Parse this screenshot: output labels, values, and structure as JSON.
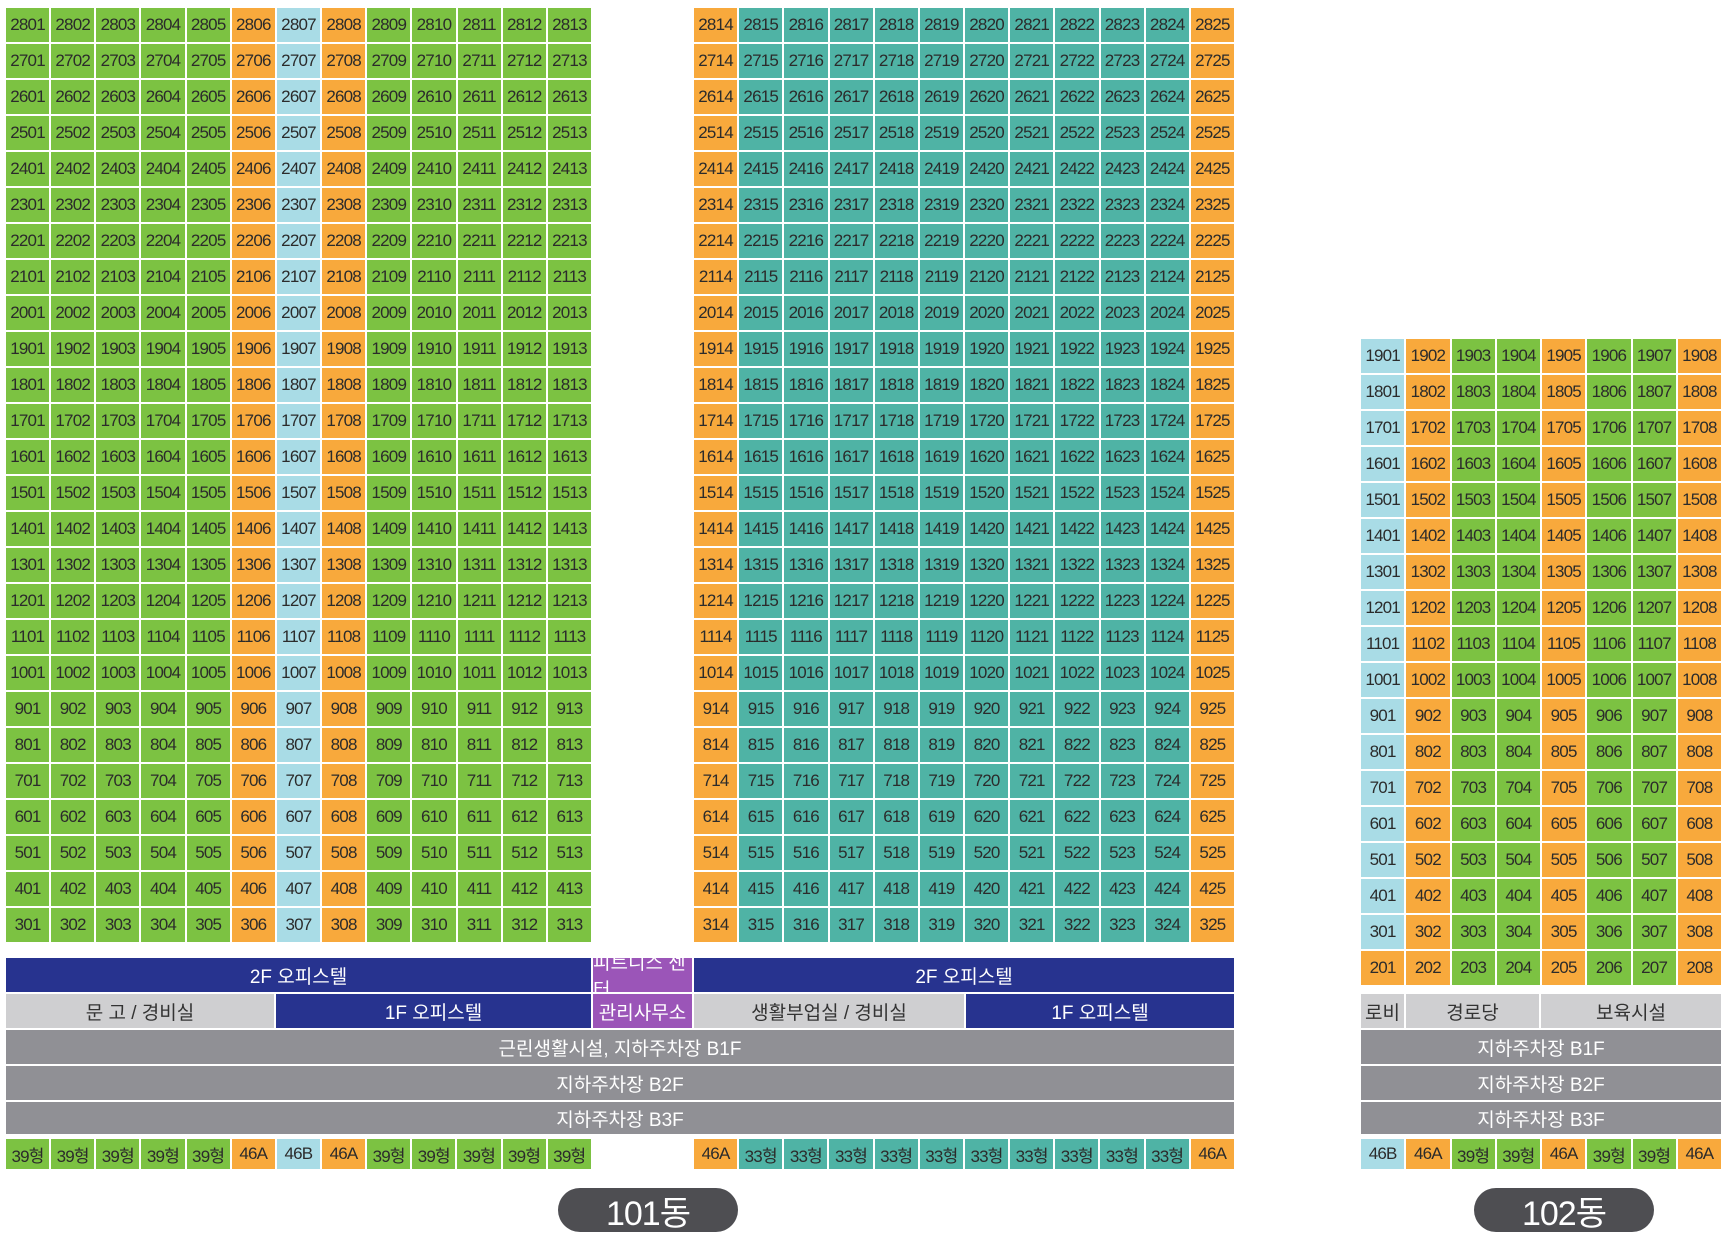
{
  "colors": {
    "g": "#7cc242",
    "o": "#f8a93c",
    "lb": "#a9dce6",
    "t": "#4fb3a5"
  },
  "building101": {
    "label": "101동",
    "left_wing": {
      "units": [
        "01",
        "02",
        "03",
        "04",
        "05",
        "06",
        "07",
        "08",
        "09",
        "10",
        "11",
        "12",
        "13"
      ],
      "col_colors": [
        "g",
        "g",
        "g",
        "g",
        "g",
        "o",
        "lb",
        "o",
        "g",
        "g",
        "g",
        "g",
        "g"
      ],
      "floors": [
        28,
        27,
        26,
        25,
        24,
        23,
        22,
        21,
        20,
        19,
        18,
        17,
        16,
        15,
        14,
        13,
        12,
        11,
        10,
        9,
        8,
        7,
        6,
        5,
        4,
        3
      ],
      "types": [
        "39형",
        "39형",
        "39형",
        "39형",
        "39형",
        "46A",
        "46B",
        "46A",
        "39형",
        "39형",
        "39형",
        "39형",
        "39형"
      ]
    },
    "right_wing": {
      "units": [
        "14",
        "15",
        "16",
        "17",
        "18",
        "19",
        "20",
        "21",
        "22",
        "23",
        "24",
        "25"
      ],
      "col_colors": [
        "o",
        "t",
        "t",
        "t",
        "t",
        "t",
        "t",
        "t",
        "t",
        "t",
        "t",
        "o"
      ],
      "floors": [
        28,
        27,
        26,
        25,
        24,
        23,
        22,
        21,
        20,
        19,
        18,
        17,
        16,
        15,
        14,
        13,
        12,
        11,
        10,
        9,
        8,
        7,
        6,
        5,
        4,
        3
      ],
      "types": [
        "46A",
        "33형",
        "33형",
        "33형",
        "33형",
        "33형",
        "33형",
        "33형",
        "33형",
        "33형",
        "33형",
        "46A"
      ]
    },
    "podium": {
      "officetel_2f_left": "2F 오피스텔",
      "fitness": "피트니스 센터",
      "officetel_2f_right": "2F 오피스텔",
      "storage_guard": "문 고 / 경비실",
      "officetel_1f_left": "1F 오피스텔",
      "management": "관리사무소",
      "living_guard": "생활부업실 / 경비실",
      "officetel_1f_right": "1F 오피스텔",
      "b1": "근린생활시설, 지하주차장 B1F",
      "b2": "지하주차장 B2F",
      "b3": "지하주차장 B3F"
    }
  },
  "building102": {
    "label": "102동",
    "units": [
      "01",
      "02",
      "03",
      "04",
      "05",
      "06",
      "07",
      "08"
    ],
    "col_colors": [
      "lb",
      "o",
      "g",
      "g",
      "o",
      "g",
      "g",
      "o"
    ],
    "floors": [
      19,
      18,
      17,
      16,
      15,
      14,
      13,
      12,
      11,
      10,
      9,
      8,
      7,
      6,
      5,
      4,
      3,
      2
    ],
    "first_col_color_floor2": "o",
    "types": [
      "46B",
      "46A",
      "39형",
      "39형",
      "46A",
      "39형",
      "39형",
      "46A"
    ],
    "podium": {
      "lobby": "로비",
      "senior_center": "경로당",
      "childcare": "보육시설",
      "b1": "지하주차장 B1F",
      "b2": "지하주차장 B2F",
      "b3": "지하주차장 B3F"
    }
  }
}
